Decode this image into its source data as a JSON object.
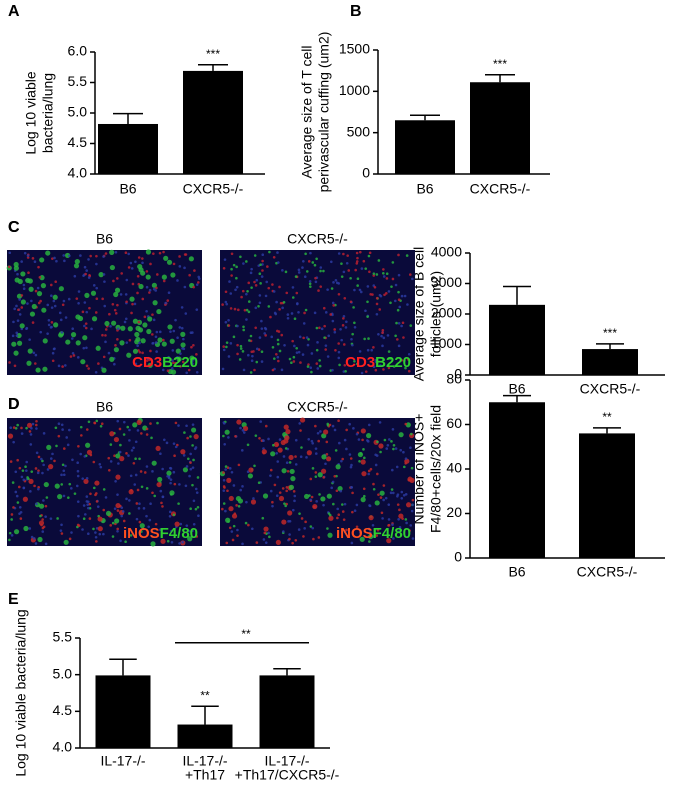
{
  "chart_data": [
    {
      "type": "bar",
      "panel": "A",
      "ylabel": [
        "Log 10 viable",
        "bacteria/lung"
      ],
      "categories": [
        [
          "B6"
        ],
        [
          "CXCR5-/-"
        ]
      ],
      "values": [
        4.82,
        5.69
      ],
      "errors": [
        0.17,
        0.1
      ],
      "significance": [
        null,
        "***"
      ],
      "color": "#000000",
      "ylim": [
        4,
        6
      ],
      "yticks": [
        {
          "value": 4,
          "label": "4.0"
        },
        {
          "value": 4.5,
          "label": "4.5"
        },
        {
          "value": 5,
          "label": "5.0"
        },
        {
          "value": 5.5,
          "label": "5.5"
        },
        {
          "value": 6,
          "label": "6.0"
        }
      ]
    },
    {
      "type": "bar",
      "panel": "B",
      "ylabel": [
        "Average size of T cell",
        "perivascular cuffing (um2)"
      ],
      "categories": [
        [
          "B6"
        ],
        [
          "CXCR5-/-"
        ]
      ],
      "values": [
        650,
        1110
      ],
      "errors": [
        60,
        90
      ],
      "significance": [
        null,
        "***"
      ],
      "color": "#000000",
      "ylim": [
        0,
        1500
      ],
      "yticks": [
        0,
        500,
        1000,
        1500
      ]
    },
    {
      "type": "bar",
      "panel": "C",
      "ylabel": [
        "Average size of B cell",
        "follicles (um2)"
      ],
      "categories": [
        [
          "B6"
        ],
        [
          "CXCR5-/-"
        ]
      ],
      "values": [
        2300,
        850
      ],
      "errors": [
        600,
        170
      ],
      "significance": [
        null,
        "***"
      ],
      "color": "#000000",
      "ylim": [
        0,
        4000
      ],
      "yticks": [
        0,
        1000,
        2000,
        3000,
        4000
      ]
    },
    {
      "type": "bar",
      "panel": "D",
      "ylabel": [
        "Number of iNOS+",
        "F4/80+cells/20x field"
      ],
      "categories": [
        [
          "B6"
        ],
        [
          "CXCR5-/-"
        ]
      ],
      "values": [
        70,
        56
      ],
      "errors": [
        3,
        2.5
      ],
      "significance": [
        null,
        "**"
      ],
      "color": "#000000",
      "ylim": [
        0,
        80
      ],
      "yticks": [
        0,
        20,
        40,
        60,
        80
      ]
    },
    {
      "type": "bar",
      "panel": "E",
      "ylabel": [
        "Log 10 viable bacteria/lung"
      ],
      "categories": [
        [
          "IL-17-/-"
        ],
        [
          "IL-17-/-",
          "+Th17"
        ],
        [
          "IL-17-/-",
          "+Th17/CXCR5-/-"
        ]
      ],
      "values": [
        4.99,
        4.32,
        4.99
      ],
      "errors": [
        0.22,
        0.25,
        0.09
      ],
      "significance": [
        null,
        "**",
        null
      ],
      "bracket": {
        "text": "**",
        "between": [
          1,
          2
        ]
      },
      "color": "#000000",
      "ylim": [
        4,
        5.5
      ],
      "yticks": [
        {
          "value": 4,
          "label": "4.0"
        },
        {
          "value": 4.5,
          "label": "4.5"
        },
        {
          "value": 5,
          "label": "5.0"
        },
        {
          "value": 5.5,
          "label": "5.5"
        }
      ]
    }
  ],
  "micrographs": [
    {
      "panel": "C",
      "titles": [
        "B6",
        "CXCR5-/-"
      ],
      "stain": [
        {
          "text": "CD3",
          "color": "#ff2020"
        },
        {
          "text": "B220",
          "color": "#30d030"
        }
      ]
    },
    {
      "panel": "D",
      "titles": [
        "B6",
        "CXCR5-/-"
      ],
      "stain": [
        {
          "text": "iNOS",
          "color": "#ff5020"
        },
        {
          "text": "F4/80",
          "color": "#30d030"
        }
      ]
    }
  ]
}
